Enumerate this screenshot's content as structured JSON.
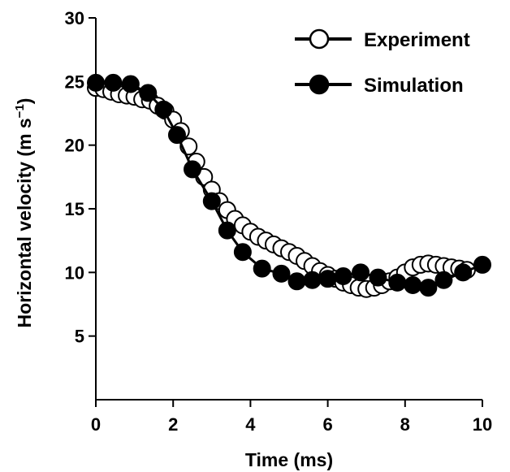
{
  "chart_data": {
    "type": "line",
    "title": "",
    "xlabel": "Time (ms)",
    "ylabel": "Horizontal velocity (m s⁻¹)",
    "ylabel_main": "Horizontal velocity (m s",
    "ylabel_sup": "−1",
    "ylabel_close": ")",
    "xlim": [
      0,
      10
    ],
    "ylim": [
      0,
      30
    ],
    "xticks": [
      0,
      2,
      4,
      6,
      8,
      10
    ],
    "yticks": [
      5,
      10,
      15,
      20,
      25,
      30
    ],
    "grid": false,
    "legend_position": "top-right",
    "series": [
      {
        "name": "Experiment",
        "marker": "open-circle",
        "color": "#000000",
        "x": [
          0.0,
          0.2,
          0.4,
          0.6,
          0.8,
          1.0,
          1.2,
          1.4,
          1.6,
          1.8,
          2.0,
          2.2,
          2.4,
          2.6,
          2.8,
          3.0,
          3.2,
          3.4,
          3.6,
          3.8,
          4.0,
          4.2,
          4.4,
          4.6,
          4.8,
          5.0,
          5.2,
          5.4,
          5.6,
          5.8,
          6.0,
          6.2,
          6.4,
          6.6,
          6.8,
          7.0,
          7.2,
          7.4,
          7.6,
          7.8,
          8.0,
          8.2,
          8.4,
          8.6,
          8.8,
          9.0,
          9.2,
          9.4,
          9.6
        ],
        "y": [
          24.5,
          24.4,
          24.2,
          24.0,
          23.9,
          23.8,
          23.6,
          23.5,
          23.1,
          22.7,
          22.0,
          21.1,
          19.9,
          18.7,
          17.5,
          16.5,
          15.6,
          14.9,
          14.2,
          13.7,
          13.2,
          12.8,
          12.5,
          12.2,
          11.9,
          11.6,
          11.3,
          10.9,
          10.5,
          10.1,
          9.8,
          9.5,
          9.2,
          9.0,
          8.8,
          8.7,
          8.8,
          9.0,
          9.3,
          9.6,
          10.0,
          10.4,
          10.6,
          10.7,
          10.6,
          10.5,
          10.4,
          10.3,
          10.2
        ]
      },
      {
        "name": "Simulation",
        "marker": "filled-circle",
        "color": "#000000",
        "x": [
          0.0,
          0.45,
          0.9,
          1.35,
          1.75,
          2.1,
          2.5,
          3.0,
          3.4,
          3.8,
          4.3,
          4.8,
          5.2,
          5.6,
          6.0,
          6.4,
          6.85,
          7.3,
          7.8,
          8.2,
          8.6,
          9.0,
          9.5,
          10.0
        ],
        "y": [
          24.9,
          24.9,
          24.8,
          24.1,
          22.8,
          20.8,
          18.1,
          15.6,
          13.3,
          11.6,
          10.3,
          9.9,
          9.3,
          9.4,
          9.5,
          9.7,
          10.0,
          9.6,
          9.2,
          9.0,
          8.8,
          9.4,
          10.0,
          10.6
        ]
      }
    ]
  }
}
